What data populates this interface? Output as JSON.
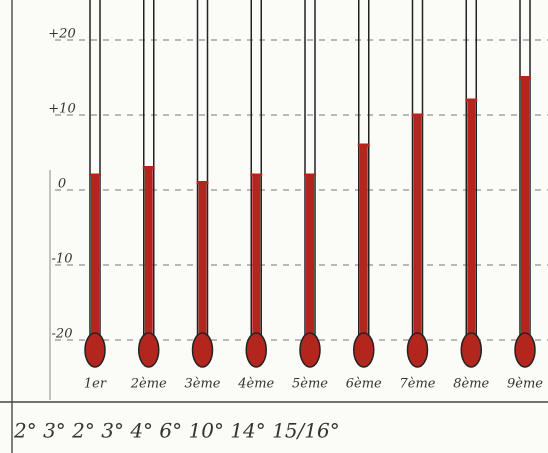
{
  "chart_data": {
    "type": "bar",
    "categories": [
      "1er",
      "2ème",
      "3ème",
      "4ème",
      "5ème",
      "6ème",
      "7ème",
      "8ème",
      "9ème"
    ],
    "values": [
      2,
      3,
      1,
      2,
      2,
      6,
      10,
      12,
      15
    ],
    "color": "#b3261e",
    "ylim": [
      -27,
      25
    ],
    "yticks": [
      {
        "value": 20,
        "label": "+20"
      },
      {
        "value": 10,
        "label": "+10"
      },
      0,
      -10,
      -20
    ],
    "grid": true,
    "annotation": "2° 3° 2° 3° 4° 6° 10° 14° 15/16°"
  }
}
